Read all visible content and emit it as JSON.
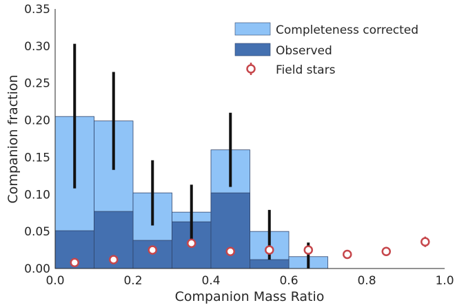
{
  "chart_data": {
    "type": "bar",
    "xlabel": "Companion Mass Ratio",
    "ylabel": "Companion fraction",
    "xlim": [
      0.0,
      1.0
    ],
    "ylim": [
      0.0,
      0.35
    ],
    "xticks": [
      "0.0",
      "0.2",
      "0.4",
      "0.6",
      "0.8",
      "1.0"
    ],
    "yticks": [
      "0.00",
      "0.05",
      "0.10",
      "0.15",
      "0.20",
      "0.25",
      "0.30",
      "0.35"
    ],
    "bin_edges": [
      0.0,
      0.1,
      0.2,
      0.3,
      0.4,
      0.5,
      0.6,
      0.7
    ],
    "legend_position": "top-right",
    "grid": false,
    "series": [
      {
        "name": "Completeness corrected",
        "kind": "histogram",
        "color": "#8fc3f7",
        "values": [
          0.205,
          0.199,
          0.102,
          0.076,
          0.16,
          0.05,
          0.016
        ],
        "error_bars": [
          [
            0.108,
            0.303
          ],
          [
            0.133,
            0.265
          ],
          [
            0.058,
            0.146
          ],
          [
            0.035,
            0.113
          ],
          [
            0.11,
            0.21
          ],
          [
            0.012,
            0.079
          ],
          [
            0.0,
            0.035
          ]
        ]
      },
      {
        "name": "Observed",
        "kind": "histogram",
        "color": "#4470b0",
        "values": [
          0.051,
          0.077,
          0.038,
          0.063,
          0.102,
          0.012,
          0.0
        ]
      },
      {
        "name": "Field stars",
        "kind": "scatter",
        "color": "#c6464b",
        "x": [
          0.05,
          0.15,
          0.25,
          0.35,
          0.45,
          0.55,
          0.65,
          0.75,
          0.85,
          0.95
        ],
        "y": [
          0.008,
          0.012,
          0.025,
          0.034,
          0.023,
          0.025,
          0.025,
          0.019,
          0.023,
          0.036
        ],
        "yerr": [
          0.003,
          0.004,
          0.005,
          0.006,
          0.005,
          0.006,
          0.006,
          0.005,
          0.006,
          0.007
        ]
      }
    ]
  }
}
